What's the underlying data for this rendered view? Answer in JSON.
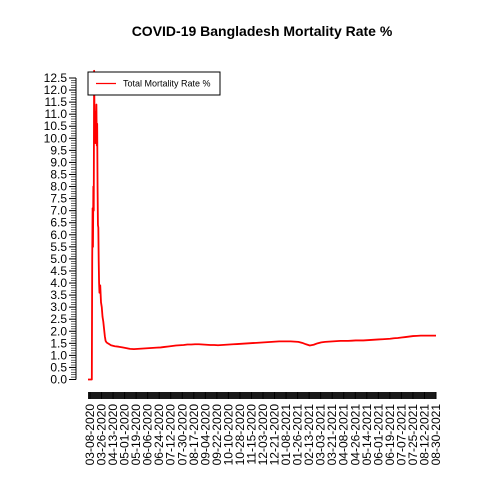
{
  "chart_data": {
    "type": "line",
    "title": "COVID-19 Bangladesh Mortality Rate %",
    "xlabel": "",
    "ylabel": "",
    "ylim": [
      0,
      12.5
    ],
    "y_ticks": [
      "0.0",
      "0.5",
      "1.0",
      "1.5",
      "2.0",
      "2.5",
      "3.0",
      "3.5",
      "4.0",
      "4.5",
      "5.0",
      "5.5",
      "6.0",
      "6.5",
      "7.0",
      "7.5",
      "8.0",
      "8.5",
      "9.0",
      "9.5",
      "10.0",
      "10.5",
      "11.0",
      "11.5",
      "12.0",
      "12.5"
    ],
    "x_tick_labels": [
      "03-08-2020",
      "03-26-2020",
      "04-13-2020",
      "05-01-2020",
      "05-19-2020",
      "06-06-2020",
      "06-24-2020",
      "07-12-2020",
      "07-30-2020",
      "08-17-2020",
      "09-04-2020",
      "09-22-2020",
      "10-10-2020",
      "10-28-2020",
      "11-15-2020",
      "12-03-2020",
      "12-21-2020",
      "01-08-2021",
      "01-26-2021",
      "02-13-2021",
      "03-03-2021",
      "03-21-2021",
      "04-08-2021",
      "04-26-2021",
      "05-14-2021",
      "06-01-2021",
      "06-19-2021",
      "07-07-2021",
      "07-25-2021",
      "08-12-2021",
      "08-30-2021"
    ],
    "grid": false,
    "legend_position": "top-left",
    "series": [
      {
        "name": "Total Mortality Rate %",
        "color": "#ff0000",
        "x": [
          0,
          5,
          10,
          11,
          12,
          13,
          14,
          15,
          16,
          17,
          18,
          19,
          20,
          21,
          22,
          23,
          24,
          25,
          26,
          27,
          28,
          29,
          30,
          32,
          34,
          36,
          38,
          40,
          42,
          44,
          46,
          48,
          50,
          55,
          60,
          70,
          80,
          90,
          100,
          110,
          120,
          130,
          140,
          150,
          160,
          170,
          180,
          190,
          200,
          210,
          220,
          230,
          240,
          250,
          260,
          270,
          280,
          290,
          300,
          310,
          320,
          330,
          340,
          350,
          360,
          370,
          380,
          390,
          400,
          410,
          420,
          430,
          440,
          450,
          460,
          470,
          480,
          490,
          500,
          510,
          520,
          530,
          540,
          550,
          560,
          570,
          580,
          590,
          600,
          610,
          620,
          630,
          640,
          650,
          660,
          670,
          680,
          690,
          700,
          710,
          720,
          730,
          740,
          750,
          760,
          770,
          780,
          790,
          800,
          810,
          820,
          830,
          840,
          850,
          860,
          870,
          880,
          890,
          900,
          910
        ],
        "y": [
          0,
          0,
          0,
          5.0,
          7.1,
          5.5,
          8.0,
          7.0,
          12.8,
          11.0,
          10.5,
          9.8,
          11.1,
          10.0,
          11.4,
          9.7,
          10.6,
          8.0,
          6.4,
          6.3,
          4.9,
          4.0,
          3.6,
          3.9,
          3.2,
          3.0,
          2.6,
          2.4,
          2.1,
          1.8,
          1.6,
          1.55,
          1.52,
          1.47,
          1.42,
          1.38,
          1.36,
          1.33,
          1.3,
          1.27,
          1.26,
          1.27,
          1.28,
          1.29,
          1.3,
          1.31,
          1.32,
          1.33,
          1.35,
          1.37,
          1.39,
          1.41,
          1.42,
          1.43,
          1.45,
          1.45,
          1.46,
          1.46,
          1.45,
          1.44,
          1.43,
          1.43,
          1.42,
          1.43,
          1.44,
          1.45,
          1.46,
          1.47,
          1.48,
          1.49,
          1.5,
          1.51,
          1.52,
          1.53,
          1.54,
          1.55,
          1.56,
          1.57,
          1.58,
          1.58,
          1.58,
          1.58,
          1.57,
          1.56,
          1.52,
          1.46,
          1.41,
          1.44,
          1.5,
          1.54,
          1.56,
          1.57,
          1.58,
          1.59,
          1.6,
          1.6,
          1.6,
          1.61,
          1.62,
          1.62,
          1.62,
          1.63,
          1.64,
          1.65,
          1.66,
          1.67,
          1.68,
          1.69,
          1.71,
          1.72,
          1.74,
          1.76,
          1.78,
          1.8,
          1.81,
          1.82,
          1.82,
          1.82,
          1.82,
          1.82
        ]
      }
    ]
  }
}
